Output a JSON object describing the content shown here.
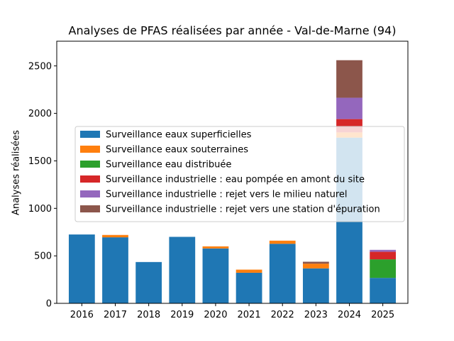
{
  "chart_data": {
    "type": "bar",
    "stacked": true,
    "title": "Analyses de PFAS réalisées par année - Val-de-Marne (94)",
    "xlabel": "",
    "ylabel": "Analyses réalisées",
    "ylim": [
      0,
      2760
    ],
    "yticks": [
      0,
      500,
      1000,
      1500,
      2000,
      2500
    ],
    "grid": false,
    "legend_position": "center-left",
    "categories": [
      "2016",
      "2017",
      "2018",
      "2019",
      "2020",
      "2021",
      "2022",
      "2023",
      "2024",
      "2025"
    ],
    "series": [
      {
        "name": "Surveillance eaux superficielles",
        "color": "#1f77b4",
        "values": [
          725,
          695,
          435,
          700,
          578,
          322,
          627,
          368,
          1745,
          268
        ]
      },
      {
        "name": "Surveillance eaux souterraines",
        "color": "#ff7f0e",
        "values": [
          0,
          25,
          0,
          0,
          22,
          33,
          33,
          50,
          55,
          0
        ]
      },
      {
        "name": "Surveillance eau distribuée",
        "color": "#2ca02c",
        "values": [
          0,
          0,
          0,
          0,
          0,
          0,
          0,
          0,
          0,
          195
        ]
      },
      {
        "name": "Surveillance industrielle : eau pompée en amont du site",
        "color": "#d62728",
        "values": [
          0,
          0,
          0,
          0,
          0,
          0,
          0,
          0,
          140,
          80
        ]
      },
      {
        "name": "Surveillance industrielle : rejet vers le milieu naturel",
        "color": "#9467bd",
        "values": [
          0,
          0,
          0,
          0,
          0,
          0,
          0,
          0,
          225,
          20
        ]
      },
      {
        "name": "Surveillance industrielle : rejet vers une station d'épuration",
        "color": "#8c564b",
        "values": [
          0,
          0,
          0,
          0,
          0,
          0,
          0,
          20,
          395,
          0
        ]
      }
    ]
  }
}
